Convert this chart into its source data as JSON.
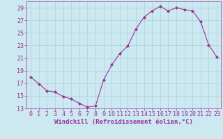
{
  "x": [
    0,
    1,
    2,
    3,
    4,
    5,
    6,
    7,
    8,
    9,
    10,
    11,
    12,
    13,
    14,
    15,
    16,
    17,
    18,
    19,
    20,
    21,
    22,
    23
  ],
  "y": [
    18.0,
    16.9,
    15.8,
    15.6,
    14.9,
    14.5,
    13.8,
    13.2,
    13.4,
    17.5,
    19.9,
    21.7,
    22.9,
    25.6,
    27.5,
    28.5,
    29.2,
    28.5,
    29.0,
    28.7,
    28.5,
    26.8,
    23.1,
    21.2
  ],
  "line_color": "#993399",
  "marker": "D",
  "marker_size": 2.0,
  "bg_color": "#cce8f0",
  "grid_color": "#aad0dc",
  "xlabel": "Windchill (Refroidissement éolien,°C)",
  "xlim": [
    -0.5,
    23.5
  ],
  "ylim": [
    13,
    30
  ],
  "yticks": [
    13,
    15,
    17,
    19,
    21,
    23,
    25,
    27,
    29
  ],
  "xticks": [
    0,
    1,
    2,
    3,
    4,
    5,
    6,
    7,
    8,
    9,
    10,
    11,
    12,
    13,
    14,
    15,
    16,
    17,
    18,
    19,
    20,
    21,
    22,
    23
  ],
  "tick_color": "#993399",
  "label_color": "#993399",
  "xlabel_fontsize": 6.5,
  "tick_fontsize": 6.0,
  "line_width": 0.8
}
